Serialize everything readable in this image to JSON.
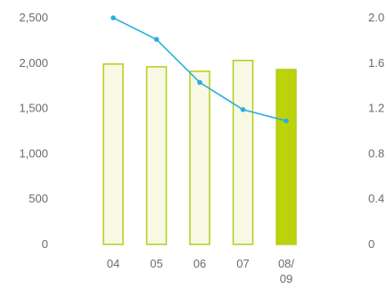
{
  "chart_data": {
    "type": "bar",
    "title": "",
    "xlabel": "",
    "ylabel": "",
    "categories": [
      "04",
      "05",
      "06",
      "07",
      "08/\n09"
    ],
    "series": [
      {
        "type": "bar",
        "axis": "left",
        "values": [
          1990,
          1960,
          1910,
          2030,
          1930
        ]
      },
      {
        "type": "line",
        "axis": "right",
        "values": [
          2.0,
          1.81,
          1.43,
          1.19,
          1.09
        ]
      }
    ],
    "ylim": [
      0,
      2500
    ],
    "y_ticks": [
      "0",
      "500",
      "1,000",
      "1,500",
      "2,000",
      "2,500"
    ],
    "y2lim": [
      0,
      2.0
    ],
    "y2_ticks": [
      "0",
      "0.4",
      "0.8",
      "1.2",
      "1.6",
      "2.0"
    ],
    "grid": false,
    "colors": {
      "bar_fill": "#f8f9e4",
      "bar_stroke": "#b7cc1a",
      "bar_highlight": "#bcd20a",
      "line": "#2aaee2",
      "tick_text": "#6b6b6b"
    }
  }
}
